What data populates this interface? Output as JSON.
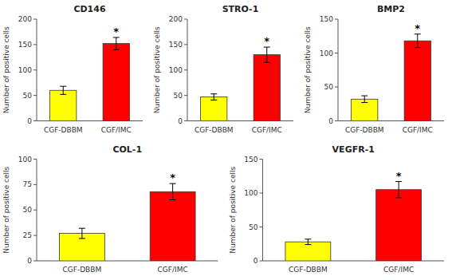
{
  "chart_data": [
    {
      "type": "bar",
      "title": "CD146",
      "categories": [
        "CGF-DBBM",
        "CGF/IMC"
      ],
      "values": [
        60,
        152
      ],
      "errors": [
        8,
        12
      ],
      "colors": [
        "#FFFF00",
        "#FF0000"
      ],
      "ylabel": "Number of positive cells",
      "ylim": [
        0,
        200
      ],
      "yticks": [
        0,
        50,
        100,
        150,
        200
      ],
      "annotations": [
        {
          "text": "*",
          "x": "CGF/IMC"
        }
      ]
    },
    {
      "type": "bar",
      "title": "STRO-1",
      "categories": [
        "CGF-DBBM",
        "CGF/IMC"
      ],
      "values": [
        47,
        130
      ],
      "errors": [
        6,
        15
      ],
      "colors": [
        "#FFFF00",
        "#FF0000"
      ],
      "ylabel": "Number of positive cells",
      "ylim": [
        0,
        200
      ],
      "yticks": [
        0,
        50,
        100,
        150,
        200
      ],
      "annotations": [
        {
          "text": "*",
          "x": "CGF/IMC"
        }
      ]
    },
    {
      "type": "bar",
      "title": "BMP2",
      "categories": [
        "CGF-DBBM",
        "CGF/IMC"
      ],
      "values": [
        32,
        118
      ],
      "errors": [
        5,
        10
      ],
      "colors": [
        "#FFFF00",
        "#FF0000"
      ],
      "ylabel": "Number of positive cells",
      "ylim": [
        0,
        150
      ],
      "yticks": [
        0,
        50,
        100,
        150
      ],
      "annotations": [
        {
          "text": "*",
          "x": "CGF/IMC"
        }
      ]
    },
    {
      "type": "bar",
      "title": "COL-1",
      "categories": [
        "CGF-DBBM",
        "CGF/IMC"
      ],
      "values": [
        27,
        68
      ],
      "errors": [
        5,
        8
      ],
      "colors": [
        "#FFFF00",
        "#FF0000"
      ],
      "ylabel": "Number of positive cells",
      "ylim": [
        0,
        100
      ],
      "yticks": [
        0,
        25,
        50,
        75,
        100
      ],
      "annotations": [
        {
          "text": "*",
          "x": "CGF/IMC"
        }
      ]
    },
    {
      "type": "bar",
      "title": "VEGFR-1",
      "categories": [
        "CGF-DBBM",
        "CGF/IMC"
      ],
      "values": [
        28,
        105
      ],
      "errors": [
        4,
        12
      ],
      "colors": [
        "#FFFF00",
        "#FF0000"
      ],
      "ylabel": "Number of positive cells",
      "ylim": [
        0,
        150
      ],
      "yticks": [
        0,
        50,
        100,
        150
      ],
      "annotations": [
        {
          "text": "*",
          "x": "CGF/IMC"
        }
      ]
    }
  ]
}
